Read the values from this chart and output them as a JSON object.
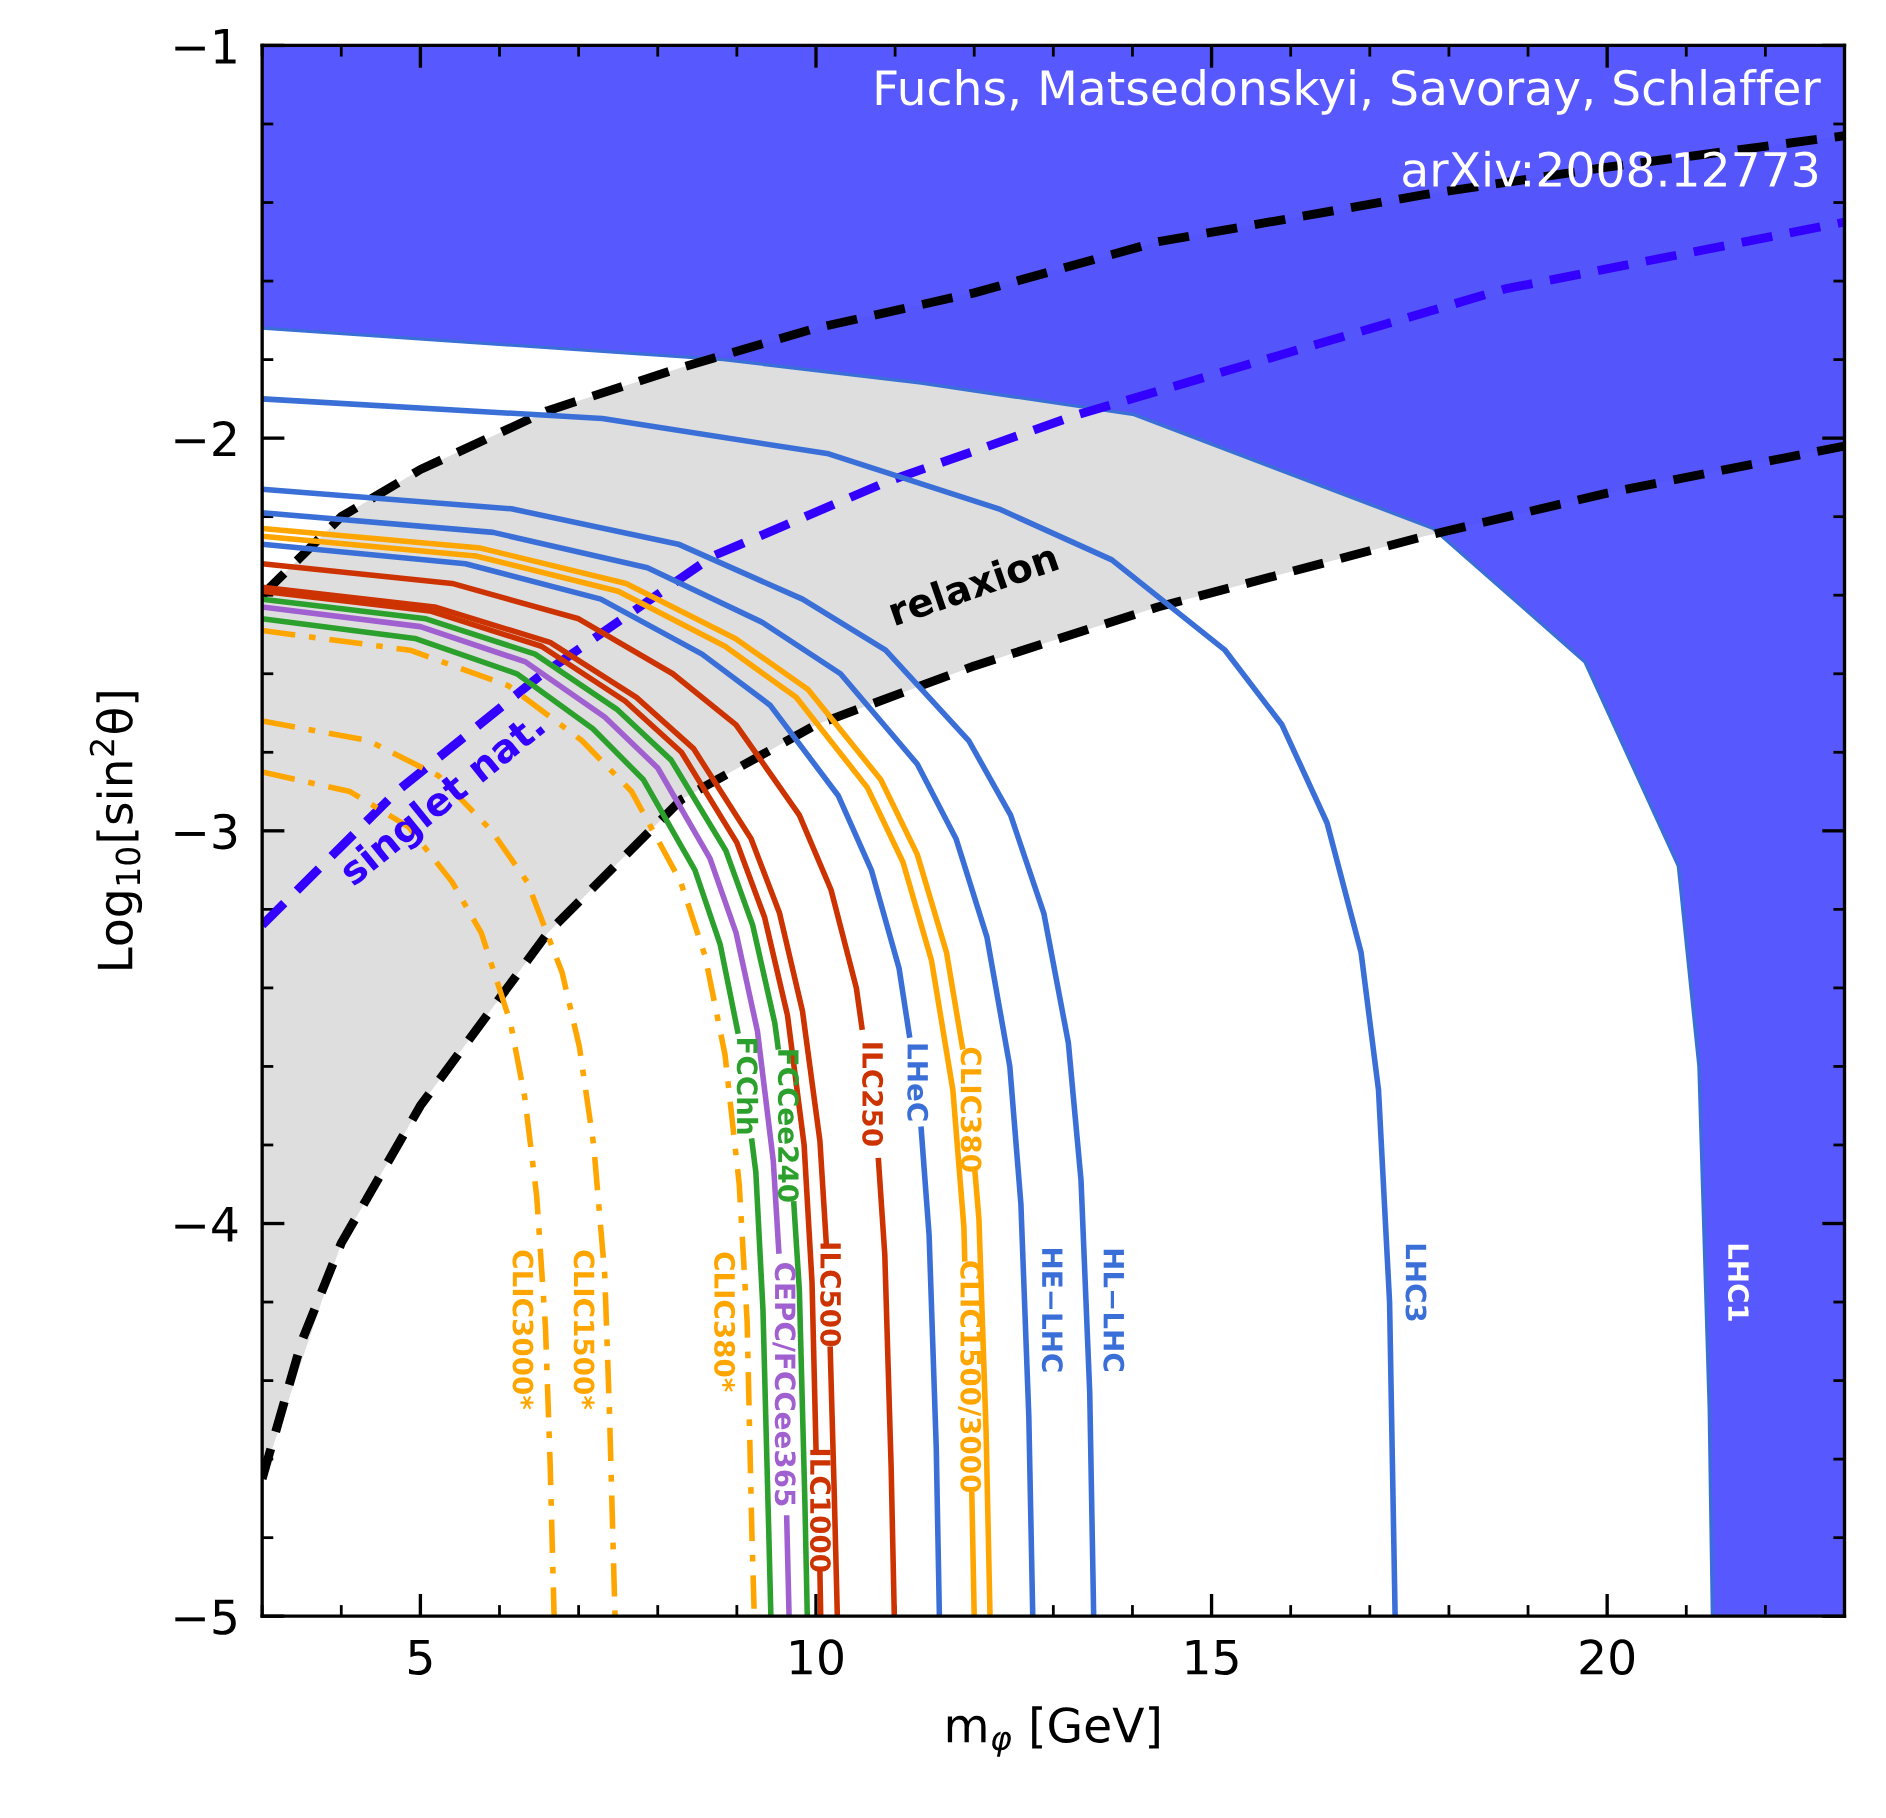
{
  "chart_data": {
    "type": "line",
    "xlabel": "m$_{φ}$ [GeV]",
    "ylabel": "Log$_{10}$[sin$^{2}$θ]",
    "xlim": [
      3,
      23
    ],
    "ylim": [
      -5,
      -1
    ],
    "xticks": [
      {
        "value": 3,
        "label": null
      },
      {
        "value": 4,
        "label": null
      },
      5,
      {
        "value": 6,
        "label": null
      },
      {
        "value": 7,
        "label": null
      },
      {
        "value": 8,
        "label": null
      },
      {
        "value": 9,
        "label": null
      },
      10,
      {
        "value": 11,
        "label": null
      },
      {
        "value": 12,
        "label": null
      },
      {
        "value": 13,
        "label": null
      },
      {
        "value": 14,
        "label": null
      },
      15,
      {
        "value": 16,
        "label": null
      },
      {
        "value": 17,
        "label": null
      },
      {
        "value": 18,
        "label": null
      },
      {
        "value": 19,
        "label": null
      },
      20,
      {
        "value": 21,
        "label": null
      },
      {
        "value": 22,
        "label": null
      },
      {
        "value": 23,
        "label": null
      }
    ],
    "yticks": [
      {
        "value": -5,
        "label": "−5"
      },
      {
        "value": -4.8,
        "label": null
      },
      {
        "value": -4.6,
        "label": null
      },
      {
        "value": -4.4,
        "label": null
      },
      {
        "value": -4.2,
        "label": null
      },
      {
        "value": -4,
        "label": "−4"
      },
      {
        "value": -3.8,
        "label": null
      },
      {
        "value": -3.6,
        "label": null
      },
      {
        "value": -3.4,
        "label": null
      },
      {
        "value": -3.2,
        "label": null
      },
      {
        "value": -3,
        "label": "−3"
      },
      {
        "value": -2.8,
        "label": null
      },
      {
        "value": -2.6,
        "label": null
      },
      {
        "value": -2.4,
        "label": null
      },
      {
        "value": -2.2,
        "label": null
      },
      {
        "value": -2,
        "label": "−2"
      },
      {
        "value": -1.8,
        "label": null
      },
      {
        "value": -1.6,
        "label": null
      },
      {
        "value": -1.4,
        "label": null
      },
      {
        "value": -1.2,
        "label": null
      },
      {
        "value": -1,
        "label": "−1"
      }
    ],
    "grid": false,
    "legend": false,
    "series": [
      {
        "name": "relaxion",
        "color": "#000000",
        "line_style": "dashed",
        "x": [
          3,
          4,
          5,
          6.61,
          8.3,
          10,
          12,
          14.32,
          17.69,
          20,
          23
        ],
        "values": [
          -2.4,
          -2.2,
          -2.08,
          -1.93,
          -1.82,
          -1.72,
          -1.63,
          -1.5,
          -1.38,
          -1.31,
          -1.23
        ],
        "lower": [
          -4.65,
          -4.05,
          -3.7,
          -3.26,
          -2.92,
          -2.73,
          -2.58,
          -2.43,
          -2.25,
          -2.14,
          -2.02
        ],
        "upper": [
          -2.4,
          -2.2,
          -2.08,
          -1.93,
          -1.82,
          -1.72,
          -1.63,
          -1.5,
          -1.38,
          -1.31,
          -1.23
        ]
      },
      {
        "color": "#000000",
        "line_style": "dashed",
        "x": [
          3,
          3.5,
          4,
          5,
          6.61,
          8.3,
          10,
          12,
          14.32,
          17.69,
          20,
          23
        ],
        "values": [
          -4.65,
          -4.3,
          -4.05,
          -3.7,
          -3.26,
          -2.92,
          -2.73,
          -2.58,
          -2.43,
          -2.25,
          -2.14,
          -2.02
        ]
      },
      {
        "name": "singlet nat.",
        "color": "#3300ff",
        "line_style": "dashed",
        "x": [
          3,
          4.7,
          6.48,
          8.7,
          10.91,
          13.31,
          18.71,
          23
        ],
        "values": [
          -3.24,
          -2.9,
          -2.61,
          -2.3,
          -2.11,
          -1.94,
          -1.62,
          -1.45
        ]
      },
      {
        "name": "CLIC3000*",
        "color": "#ffa500",
        "line_style": "dashdot",
        "x": [
          3,
          4.11,
          4.85,
          5.4,
          5.77,
          6.14,
          6.32,
          6.47,
          6.58,
          6.64,
          6.69
        ],
        "values": [
          -2.85,
          -2.9,
          -2.99,
          -3.13,
          -3.26,
          -3.49,
          -3.68,
          -3.93,
          -4.26,
          -4.61,
          -5
        ]
      },
      {
        "name": "CLIC1500*",
        "color": "#ffa500",
        "line_style": "dashdot",
        "x": [
          3,
          4.34,
          5.23,
          5.9,
          6.35,
          6.79,
          7.01,
          7.19,
          7.33,
          7.39,
          7.46
        ],
        "values": [
          -2.72,
          -2.77,
          -2.86,
          -3.0,
          -3.13,
          -3.36,
          -3.55,
          -3.8,
          -4.13,
          -4.48,
          -5
        ]
      },
      {
        "name": "CLIC380*",
        "color": "#ffa500",
        "line_style": "dashdot",
        "x": [
          3,
          4.87,
          6.11,
          7.04,
          7.67,
          8.29,
          8.6,
          8.85,
          9.03,
          9.13,
          9.19,
          9.22
        ],
        "values": [
          -2.49,
          -2.54,
          -2.63,
          -2.77,
          -2.9,
          -3.13,
          -3.32,
          -3.57,
          -3.9,
          -4.25,
          -4.79,
          -5
        ]
      },
      {
        "name": "FCChh",
        "color": "#2ca02c",
        "line_style": "solid",
        "x": [
          3,
          4.93,
          6.22,
          7.18,
          7.82,
          8.47,
          8.79,
          9.01,
          9.1,
          9.19,
          9.24,
          9.33,
          9.4,
          9.43
        ],
        "values": [
          -2.46,
          -2.51,
          -2.6,
          -2.74,
          -2.87,
          -3.1,
          -3.29,
          -3.51,
          null,
          -3.79,
          -3.87,
          -4.22,
          -4.76,
          -5
        ]
      },
      {
        "name": "CEPC/FCCee365",
        "color": "#a060d0",
        "line_style": "solid",
        "x": [
          3,
          5.0,
          6.33,
          7.33,
          8.0,
          8.66,
          8.99,
          9.26,
          9.46,
          9.53,
          9.58,
          9.63,
          9.66
        ],
        "values": [
          -2.43,
          -2.48,
          -2.57,
          -2.71,
          -2.84,
          -3.07,
          -3.26,
          -3.51,
          -3.84,
          -4.07,
          null,
          -4.75,
          -5
        ]
      },
      {
        "name": "FCCee240",
        "color": "#2ca02c",
        "line_style": "solid",
        "x": [
          3,
          5.07,
          6.45,
          7.48,
          8.17,
          8.86,
          9.2,
          9.48,
          9.52,
          9.6,
          9.72,
          9.79,
          9.86,
          9.89
        ],
        "values": [
          -2.41,
          -2.46,
          -2.55,
          -2.69,
          -2.82,
          -3.05,
          -3.24,
          -3.49,
          -3.55,
          null,
          -3.95,
          -4.17,
          -4.71,
          -5
        ]
      },
      {
        "name": "ILC1000",
        "color": "#cc3300",
        "line_style": "solid",
        "x": [
          3,
          5.12,
          6.53,
          7.59,
          8.3,
          9.0,
          9.35,
          9.64,
          9.85,
          9.95,
          10.0,
          10.02,
          10.05,
          10.06
        ],
        "values": [
          -2.39,
          -2.44,
          -2.53,
          -2.67,
          -2.8,
          -3.03,
          -3.22,
          -3.47,
          -3.8,
          -4.15,
          -4.57,
          null,
          -4.89,
          -5
        ]
      },
      {
        "name": "ILC500",
        "color": "#cc3300",
        "line_style": "solid",
        "x": [
          3,
          5.18,
          6.64,
          7.73,
          8.45,
          9.18,
          9.54,
          9.83,
          10.05,
          10.13,
          10.15,
          10.18,
          10.23,
          10.27
        ],
        "values": [
          -2.38,
          -2.43,
          -2.52,
          -2.66,
          -2.79,
          -3.02,
          -3.21,
          -3.46,
          -3.79,
          -4.05,
          null,
          -4.32,
          -4.68,
          -5
        ]
      },
      {
        "name": "ILC250",
        "color": "#cc3300",
        "line_style": "solid",
        "x": [
          3,
          5.4,
          7.0,
          8.19,
          8.99,
          9.79,
          10.19,
          10.51,
          10.58,
          10.7,
          10.79,
          10.87,
          10.95,
          10.99
        ],
        "values": [
          -2.32,
          -2.37,
          -2.46,
          -2.6,
          -2.73,
          -2.96,
          -3.15,
          -3.4,
          -3.5,
          null,
          -3.84,
          -4.08,
          -4.62,
          -5
        ]
      },
      {
        "name": "LHeC",
        "color": "#3a6fd8",
        "line_style": "solid",
        "x": [
          3,
          5.57,
          7.28,
          8.56,
          9.42,
          10.28,
          10.7,
          11.05,
          11.18,
          11.25,
          11.33,
          11.43,
          11.52,
          11.56
        ],
        "values": [
          -2.27,
          -2.32,
          -2.41,
          -2.55,
          -2.68,
          -2.91,
          -3.1,
          -3.35,
          -3.52,
          null,
          -3.76,
          -4.03,
          -4.57,
          -5
        ]
      },
      {
        "name": "CLIC1500/3000",
        "color": "#ffa500",
        "line_style": "solid",
        "x": [
          3,
          5.7,
          7.5,
          8.85,
          9.75,
          10.65,
          11.1,
          11.46,
          11.73,
          11.87,
          11.88,
          11.93,
          11.97,
          12.0
        ],
        "values": [
          -2.25,
          -2.3,
          -2.39,
          -2.53,
          -2.66,
          -2.89,
          -3.08,
          -3.33,
          -3.66,
          -4.01,
          -4.09,
          null,
          -4.69,
          -5
        ]
      },
      {
        "name": "CLIC380",
        "color": "#ffa500",
        "line_style": "solid",
        "x": [
          3,
          5.76,
          7.6,
          8.98,
          9.9,
          10.82,
          11.28,
          11.65,
          11.85,
          11.93,
          12.01,
          12.06,
          12.15,
          12.2
        ],
        "values": [
          -2.23,
          -2.28,
          -2.37,
          -2.51,
          -2.64,
          -2.87,
          -3.06,
          -3.31,
          -3.55,
          null,
          -3.87,
          -3.99,
          -4.53,
          -5
        ]
      },
      {
        "name": "HE−LHC",
        "color": "#3a6fd8",
        "line_style": "solid",
        "x": [
          3,
          5.92,
          7.87,
          9.33,
          10.31,
          11.28,
          11.77,
          12.16,
          12.45,
          12.59,
          12.69,
          12.74
        ],
        "values": [
          -2.19,
          -2.24,
          -2.33,
          -2.47,
          -2.6,
          -2.83,
          -3.02,
          -3.27,
          -3.6,
          -3.95,
          -4.49,
          -5
        ]
      },
      {
        "name": "HL−LHC",
        "color": "#3a6fd8",
        "line_style": "solid",
        "x": [
          3,
          6.15,
          8.26,
          9.83,
          10.88,
          11.93,
          12.46,
          12.88,
          13.19,
          13.35,
          13.46,
          13.51
        ],
        "values": [
          -2.13,
          -2.18,
          -2.27,
          -2.41,
          -2.54,
          -2.77,
          -2.96,
          -3.21,
          -3.54,
          -3.89,
          -4.43,
          -5
        ]
      },
      {
        "name": "LHC3",
        "color": "#3a6fd8",
        "line_style": "solid",
        "x": [
          3,
          7.3,
          10.16,
          12.31,
          13.74,
          15.17,
          15.89,
          16.46,
          16.89,
          17.11,
          17.25,
          17.32
        ],
        "values": [
          -1.9,
          -1.95,
          -2.04,
          -2.18,
          -2.31,
          -2.54,
          -2.73,
          -2.98,
          -3.31,
          -3.66,
          -4.2,
          -5
        ]
      },
      {
        "name": "LHC1",
        "type": "area",
        "color": "#4646ff",
        "x": [
          3,
          8.83,
          11.33,
          14.02,
          17.8,
          19.72,
          20.9,
          21.16,
          21.29,
          21.33,
          23
        ],
        "values": [
          -1.72,
          -1.8,
          -1.86,
          -1.94,
          -2.23,
          -2.57,
          -3.09,
          -3.6,
          -4.47,
          -5,
          -5
        ]
      }
    ],
    "annotations": [
      "Fuchs, Matsedonskyi, Savoray, Schlaffer",
      "arXiv:2008.12773"
    ]
  }
}
